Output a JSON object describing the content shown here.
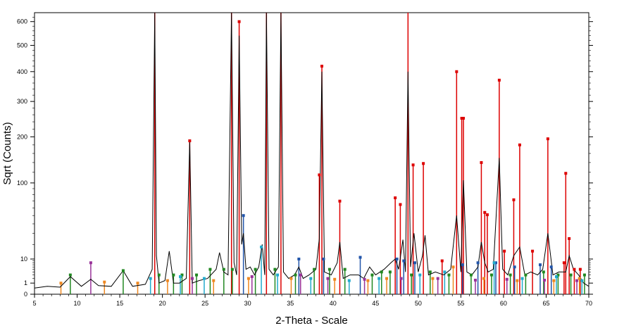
{
  "chart_data": {
    "type": "line",
    "xlabel": "2-Theta - Scale",
    "ylabel": "Sqrt (Counts)",
    "y_scale": "sqrt",
    "xlim": [
      5,
      70
    ],
    "ylim": [
      0,
      640
    ],
    "grid": false,
    "x_ticks": [
      5,
      10,
      15,
      20,
      25,
      30,
      35,
      40,
      45,
      50,
      55,
      60,
      65,
      70
    ],
    "y_ticks": [
      0,
      1,
      10,
      100,
      200,
      300,
      400,
      500,
      600
    ],
    "series": [
      {
        "name": "",
        "color": "#000000",
        "x": [
          5.0,
          6.5,
          8.0,
          9.2,
          10.5,
          11.6,
          12.5,
          14.0,
          15.4,
          16.5,
          18.0,
          18.8,
          19.1,
          19.3,
          19.6,
          20.3,
          20.8,
          21.3,
          22.0,
          22.8,
          23.2,
          23.5,
          24.3,
          25.3,
          26.3,
          26.7,
          27.2,
          27.7,
          28.1,
          28.4,
          28.7,
          29.0,
          29.3,
          29.5,
          29.8,
          30.3,
          30.8,
          31.3,
          31.7,
          32.0,
          32.2,
          32.5,
          33.0,
          33.6,
          33.9,
          34.2,
          34.8,
          35.5,
          36.0,
          36.5,
          37.2,
          38.0,
          38.4,
          38.7,
          39.0,
          39.8,
          40.5,
          40.8,
          41.2,
          42.0,
          43.0,
          43.6,
          44.3,
          45.0,
          46.0,
          46.8,
          47.3,
          47.7,
          48.2,
          48.5,
          48.8,
          49.1,
          49.5,
          50.0,
          50.5,
          50.8,
          51.2,
          52.0,
          53.0,
          53.8,
          54.5,
          55.0,
          55.3,
          55.7,
          56.3,
          57.0,
          57.4,
          57.8,
          58.2,
          58.8,
          59.5,
          59.9,
          60.5,
          61.2,
          61.9,
          62.5,
          63.2,
          64.0,
          64.6,
          65.2,
          65.8,
          66.5,
          67.3,
          67.7,
          68.2,
          68.8,
          69.4,
          70.0
        ],
        "y": [
          0.3,
          0.5,
          0.4,
          2.5,
          0.5,
          1.8,
          0.6,
          0.5,
          4.5,
          0.5,
          0.8,
          5,
          640,
          12,
          1,
          1.5,
          15,
          1,
          1,
          2,
          190,
          1,
          1.5,
          2,
          5,
          14,
          4,
          3,
          640,
          8,
          3,
          540,
          20,
          30,
          5,
          6,
          3,
          6,
          20,
          3,
          640,
          5,
          3,
          6,
          640,
          4,
          2,
          3,
          6,
          2,
          3,
          5,
          25,
          400,
          4,
          3,
          8,
          22,
          2,
          3,
          3,
          2,
          6,
          3,
          5,
          8,
          10,
          5,
          24,
          4,
          400,
          6,
          30,
          4,
          12,
          28,
          3,
          4,
          3,
          5,
          50,
          4,
          105,
          4,
          3,
          6,
          22,
          8,
          4,
          5,
          150,
          5,
          3,
          12,
          18,
          3,
          4,
          3,
          5,
          30,
          3,
          4,
          4,
          12,
          5,
          3,
          1,
          0.5
        ]
      }
    ],
    "reference_markers": [
      {
        "color": "#dd0000",
        "x": [
          19.1,
          23.2,
          28.1,
          29.0,
          32.2,
          33.9,
          38.4,
          38.7,
          40.8,
          47.3,
          47.9,
          48.8,
          49.4,
          50.6,
          52.8,
          54.5,
          55.1,
          55.3,
          57.4,
          57.8,
          58.1,
          59.5,
          60.1,
          61.2,
          61.9,
          63.4,
          65.2,
          67.1,
          67.3,
          67.7,
          68.3,
          69.0
        ],
        "y": [
          640,
          190,
          640,
          600,
          640,
          640,
          115,
          420,
          70,
          75,
          65,
          640,
          135,
          138,
          9,
          400,
          250,
          250,
          140,
          54,
          51,
          370,
          15,
          72,
          180,
          15,
          195,
          8,
          118,
          25,
          5,
          5
        ]
      },
      {
        "color": "#2255aa",
        "x": [
          29.5,
          36.0,
          38.9,
          43.2,
          47.5,
          48.3,
          49.6,
          55.2,
          57.0,
          59.1,
          61.3,
          64.3,
          65.6
        ],
        "y": [
          50,
          10,
          10,
          11,
          10,
          9,
          8,
          7,
          8,
          8,
          6,
          7,
          6
        ]
      },
      {
        "color": "#228822",
        "x": [
          9.2,
          15.4,
          19.6,
          21.3,
          22.3,
          24.0,
          25.6,
          27.2,
          28.2,
          30.9,
          33.2,
          35.6,
          37.8,
          39.6,
          41.4,
          44.6,
          45.7,
          46.7,
          49.2,
          51.4,
          53.6,
          56.2,
          58.6,
          60.8,
          62.6,
          64.7,
          66.4,
          67.9,
          69.5
        ],
        "y": [
          3,
          4.5,
          3,
          3,
          3,
          3,
          5,
          5,
          5,
          5,
          5,
          3,
          5,
          5,
          5,
          3,
          4,
          4,
          3,
          4,
          3,
          3,
          3,
          3,
          3,
          4,
          3,
          3,
          3
        ]
      },
      {
        "color": "#993399",
        "x": [
          11.6,
          23.5,
          30.5,
          36.2,
          39.4,
          43.7,
          48.0,
          52.3,
          56.7,
          60.4,
          64.8,
          68.6
        ],
        "y": [
          8,
          2,
          2.5,
          3,
          2,
          1.8,
          2,
          2,
          1.6,
          1.8,
          1.6,
          1.5
        ]
      },
      {
        "color": "#22aacc",
        "x": [
          18.6,
          22.1,
          24.9,
          31.6,
          33.5,
          37.4,
          41.9,
          45.4,
          50.2,
          53.1,
          58.9,
          62.2,
          66.2,
          69.2
        ],
        "y": [
          2,
          2.5,
          2,
          18,
          3,
          2,
          1.5,
          2,
          3,
          4,
          8,
          2,
          2.5,
          1.5
        ]
      },
      {
        "color": "#ee8822",
        "x": [
          8.1,
          13.2,
          17.1,
          20.6,
          26.0,
          30.1,
          35.1,
          40.2,
          44.1,
          46.3,
          51.7,
          54.1,
          57.7,
          61.6,
          65.9,
          68.9
        ],
        "y": [
          1,
          1.2,
          1,
          1.5,
          1.5,
          2,
          2,
          1.8,
          1.5,
          2,
          2,
          6,
          2,
          1.5,
          1.5,
          2
        ]
      }
    ]
  }
}
